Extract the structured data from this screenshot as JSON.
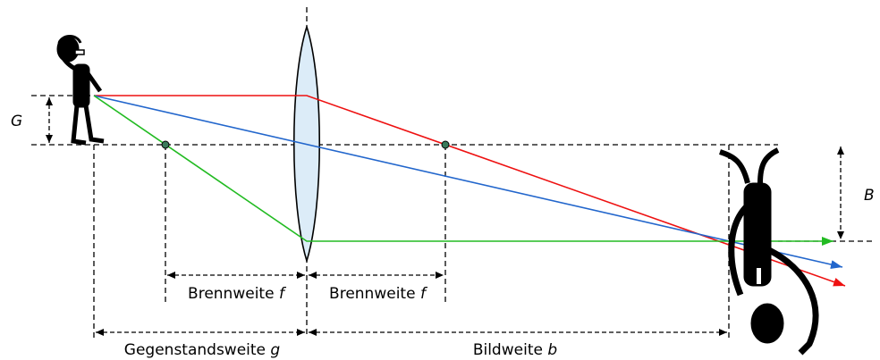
{
  "object_height": "G",
  "image_height": "B",
  "labels": [
    {
      "text": "Brennweite",
      "symbol": "f"
    },
    {
      "text": "Brennweite",
      "symbol": "f"
    },
    {
      "text": "Gegenstandsweite",
      "symbol": "g"
    },
    {
      "text": "Bildweite",
      "symbol": "b"
    }
  ]
}
